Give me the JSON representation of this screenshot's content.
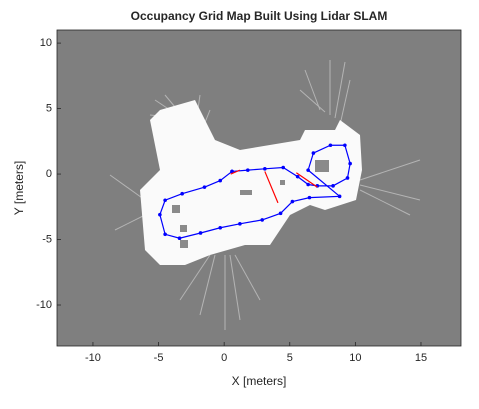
{
  "chart_data": {
    "type": "line",
    "title": "Occupancy Grid Map Built Using Lidar SLAM",
    "xlabel": "X [meters]",
    "ylabel": "Y [meters]",
    "xlim": [
      -12.74,
      18.05
    ],
    "xticks": [
      -10,
      -5,
      0,
      5,
      10,
      15
    ],
    "ylim": [
      -13.13,
      11
    ],
    "yticks": [
      -10,
      -5,
      0,
      5,
      10
    ],
    "series": [
      {
        "color": "#0000ff",
        "marker": true,
        "x": [
          0.6,
          1.8,
          3.1,
          4.5,
          5.6,
          6.4,
          7.1,
          8.3,
          9.4,
          9.6,
          9.2,
          8.1,
          6.8,
          6.4,
          8.8,
          6.5,
          5.2,
          4.3,
          2.9,
          1.2,
          -0.3,
          -1.8,
          -3.4,
          -4.5,
          -4.9,
          -4.5,
          -3.2,
          -1.5,
          -0.3,
          0.6
        ],
        "values": [
          0.2,
          0.3,
          0.4,
          0.5,
          -0.2,
          -0.8,
          -0.9,
          -0.9,
          -0.3,
          0.8,
          2.2,
          2.2,
          1.6,
          0.3,
          -1.7,
          -1.8,
          -2.1,
          -3.0,
          -3.5,
          -3.8,
          -4.1,
          -4.5,
          -4.9,
          -4.6,
          -3.1,
          -2.0,
          -1.5,
          -1.0,
          -0.5,
          0.2
        ]
      },
      {
        "color": "#ff0000",
        "marker": false,
        "x": [
          3.1,
          4.1,
          null,
          5.5,
          7.1,
          null,
          0.5,
          1.2
        ],
        "values": [
          0.2,
          -2.2,
          null,
          0.1,
          -1.0,
          null,
          0.0,
          0.3
        ]
      }
    ]
  }
}
